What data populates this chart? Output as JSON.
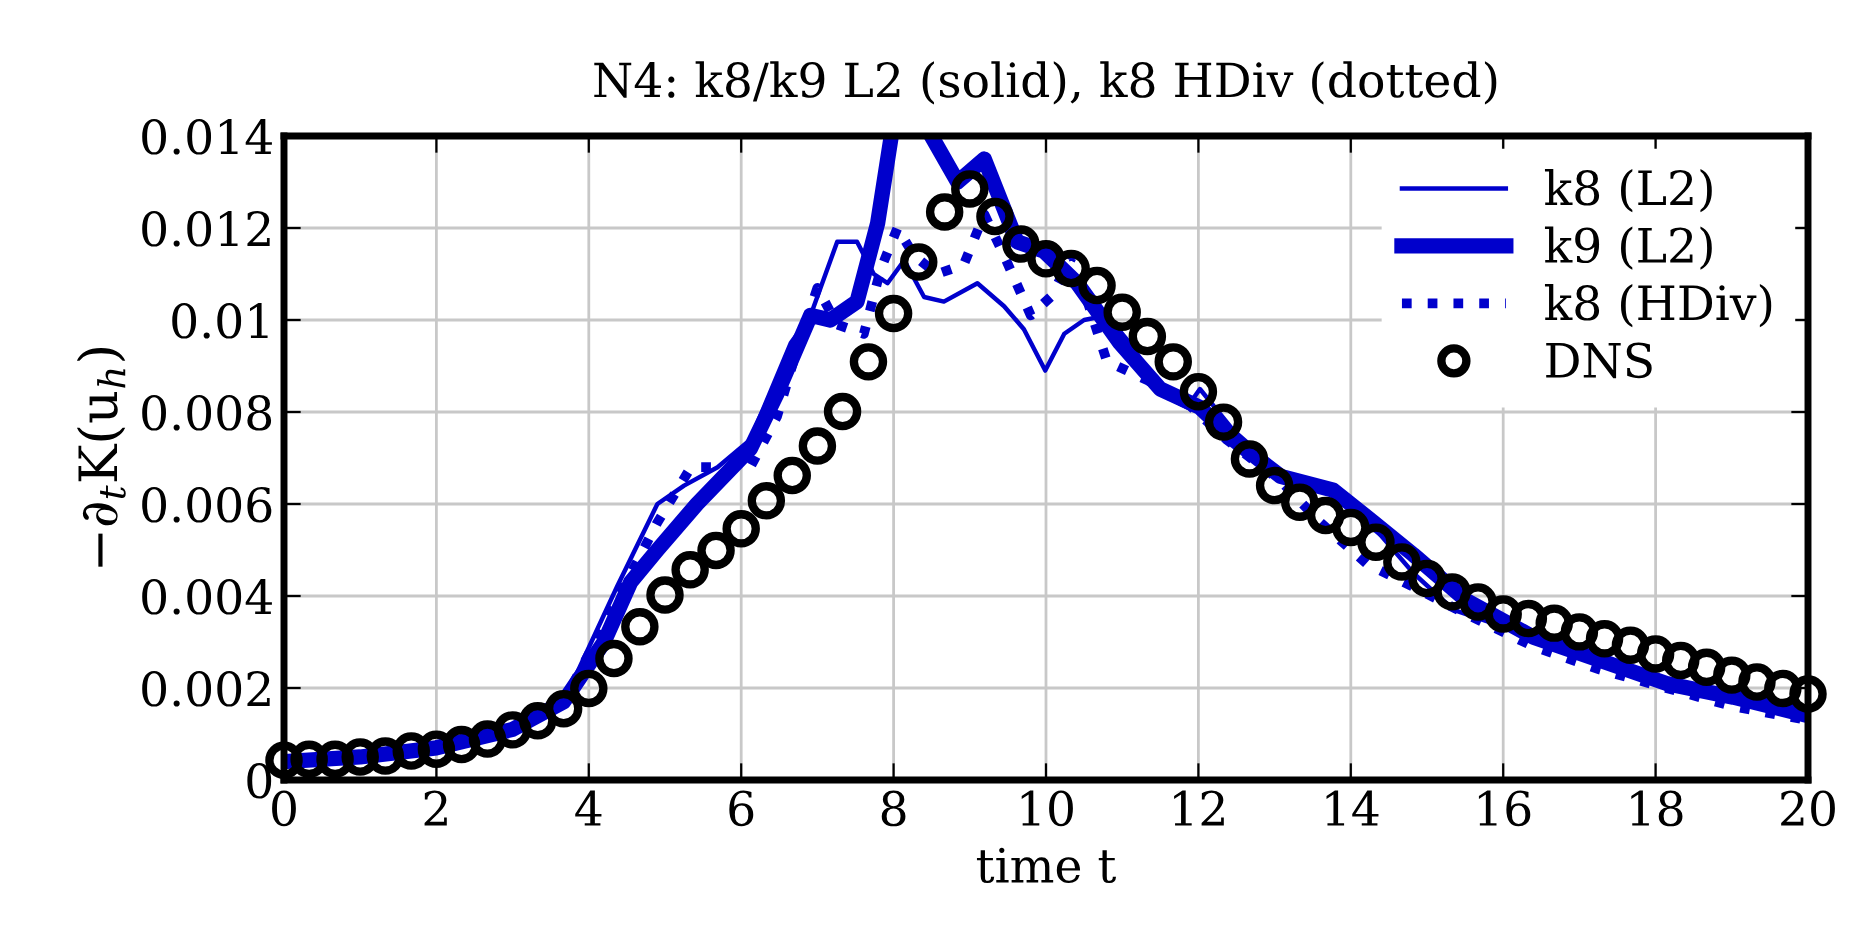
{
  "chart_data": {
    "type": "line",
    "title": "N4: k8/k9 L2 (solid), k8 HDiv (dotted)",
    "xlabel": "time t",
    "ylabel": "−∂$_{t}$K(u$_{h}$)",
    "xlim": [
      0,
      20
    ],
    "xticks": [
      0,
      2,
      4,
      6,
      8,
      10,
      12,
      14,
      16,
      18,
      20
    ],
    "ylim": [
      0,
      0.014
    ],
    "yticks": [
      0,
      0.002,
      0.004,
      0.006,
      0.008,
      0.01,
      0.012,
      0.014
    ],
    "grid": true,
    "legend": "top right",
    "series": [
      {
        "name": "k8 (L2)",
        "line_style": "solid",
        "color": "#0000cc",
        "x": [
          0,
          1,
          2,
          3,
          3.67,
          4.37,
          4.9,
          5.25,
          5.69,
          6.12,
          6.65,
          6.91,
          7.26,
          7.52,
          7.74,
          7.92,
          8.14,
          8.4,
          8.66,
          9.1,
          9.45,
          9.71,
          9.99,
          10.24,
          10.5,
          10.8,
          11.15,
          11.5,
          11.85,
          12.02,
          12.46,
          13.08,
          13.77,
          14.3,
          14.82,
          15.35,
          16.4,
          17.27,
          18.14,
          19.02,
          20
        ],
        "values": [
          0.0004,
          0.0005,
          0.0007,
          0.0011,
          0.0017,
          0.0042,
          0.006,
          0.0064,
          0.0068,
          0.0074,
          0.0095,
          0.0101,
          0.0117,
          0.0117,
          0.011,
          0.0108,
          0.0113,
          0.0105,
          0.0104,
          0.0108,
          0.0103,
          0.0098,
          0.0089,
          0.0097,
          0.01,
          0.0101,
          0.0094,
          0.0084,
          0.0081,
          0.0085,
          0.0076,
          0.0067,
          0.0064,
          0.0055,
          0.0045,
          0.0037,
          0.0031,
          0.0025,
          0.0021,
          0.0017,
          0.0013
        ]
      },
      {
        "name": "k9 (L2)",
        "line_style": "solid",
        "color": "#0000cc",
        "x": [
          0,
          1,
          2,
          3,
          3.67,
          4.2,
          4.55,
          4.9,
          5.42,
          6.12,
          6.47,
          6.91,
          7.17,
          7.52,
          7.79,
          7.96,
          8.2,
          8.53,
          8.84,
          9.19,
          9.62,
          9.97,
          10.41,
          10.97,
          11.5,
          12.02,
          12.46,
          13.08,
          13.77,
          14.3,
          14.82,
          15.52,
          16.4,
          17.27,
          18.14,
          19.02,
          20
        ],
        "values": [
          0.0004,
          0.0005,
          0.0007,
          0.0011,
          0.0017,
          0.003,
          0.0043,
          0.005,
          0.006,
          0.0072,
          0.0084,
          0.0101,
          0.01,
          0.0104,
          0.0121,
          0.0139,
          null,
          0.0139,
          0.013,
          0.0135,
          0.0117,
          0.0115,
          0.0108,
          0.0095,
          0.0085,
          0.0081,
          0.0074,
          0.0066,
          0.0063,
          0.0056,
          0.0049,
          0.0039,
          0.0031,
          0.0026,
          0.0021,
          0.0018,
          0.0014
        ]
      },
      {
        "name": "k8 (HDiv)",
        "line_style": "dotted",
        "color": "#0000cc",
        "x": [
          0,
          1,
          2,
          3,
          3.67,
          4.37,
          4.9,
          5.34,
          5.77,
          6.12,
          6.47,
          6.74,
          7.0,
          7.26,
          7.61,
          7.83,
          8.05,
          8.27,
          8.57,
          8.92,
          9.19,
          9.45,
          9.8,
          10.06,
          10.35,
          10.8,
          11.32,
          11.85,
          12.37,
          13.08,
          13.6,
          14.21,
          14.82,
          15.52,
          16.4,
          17.27,
          18.14,
          19.02,
          20
        ],
        "values": [
          0.0004,
          0.0005,
          0.0007,
          0.0011,
          0.0017,
          0.0039,
          0.0056,
          0.0068,
          0.0068,
          0.0068,
          0.0079,
          0.0094,
          0.0107,
          0.0099,
          0.0097,
          0.0111,
          0.012,
          0.0114,
          0.011,
          0.0112,
          0.0123,
          0.0114,
          0.0101,
          0.0105,
          0.0114,
          0.0091,
          0.0087,
          0.0082,
          0.0074,
          0.0065,
          0.0056,
          0.0047,
          0.0042,
          0.0036,
          0.0029,
          0.0024,
          0.002,
          0.0016,
          0.0013
        ]
      },
      {
        "name": "DNS",
        "type": "scatter",
        "marker": "circle",
        "color": "#000000",
        "x": [
          0,
          0.33,
          0.67,
          1,
          1.33,
          1.67,
          2,
          2.33,
          2.67,
          3,
          3.33,
          3.67,
          4,
          4.33,
          4.67,
          5,
          5.33,
          5.67,
          6,
          6.33,
          6.67,
          7,
          7.33,
          7.67,
          8,
          8.33,
          8.67,
          9,
          9.33,
          9.67,
          10,
          10.33,
          10.67,
          11,
          11.33,
          11.67,
          12,
          12.33,
          12.67,
          13,
          13.33,
          13.67,
          14,
          14.33,
          14.67,
          15,
          15.33,
          15.67,
          16,
          16.33,
          16.67,
          17,
          17.33,
          17.67,
          18,
          18.33,
          18.67,
          19,
          19.33,
          19.67,
          20
        ],
        "values": [
          0.00043,
          0.00045,
          0.00045,
          0.0005,
          0.00052,
          0.00063,
          0.00067,
          0.00077,
          0.00089,
          0.00109,
          0.00129,
          0.00155,
          0.00199,
          0.00264,
          0.00333,
          0.00402,
          0.00457,
          0.00499,
          0.00546,
          0.00607,
          0.00662,
          0.00726,
          0.00801,
          0.00909,
          0.01014,
          0.01126,
          0.01235,
          0.01285,
          0.01225,
          0.01165,
          0.01133,
          0.01112,
          0.01075,
          0.01017,
          0.00964,
          0.00909,
          0.00844,
          0.00778,
          0.00698,
          0.0064,
          0.00604,
          0.00575,
          0.00549,
          0.00517,
          0.00474,
          0.00438,
          0.00409,
          0.00387,
          0.00361,
          0.00351,
          0.00341,
          0.00322,
          0.00307,
          0.00293,
          0.00274,
          0.0026,
          0.00245,
          0.00228,
          0.00213,
          0.00199,
          0.00187
        ]
      }
    ]
  }
}
